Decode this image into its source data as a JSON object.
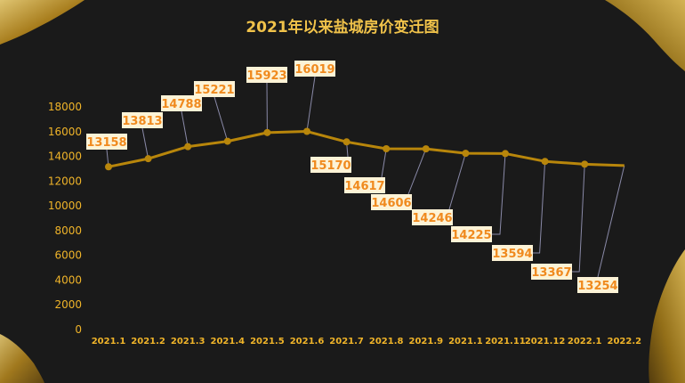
{
  "chart_data": {
    "type": "line",
    "title": "2021年以来盐城房价变迁图",
    "categories": [
      "2021.1",
      "2021.2",
      "2021.3",
      "2021.4",
      "2021.5",
      "2021.6",
      "2021.7",
      "2021.8",
      "2021.9",
      "2021.1",
      "2021.11",
      "2021.12",
      "2022.1",
      "2022.2"
    ],
    "series": [
      {
        "values": [
          13158,
          13813,
          14788,
          15221,
          15923,
          16019,
          15170,
          14617,
          14606,
          14246,
          14225,
          13594,
          13367,
          13254
        ]
      }
    ],
    "ylim": [
      0,
      18000
    ],
    "yticks": [
      0,
      2000,
      4000,
      6000,
      8000,
      10000,
      12000,
      14000,
      16000,
      18000
    ],
    "grid": false,
    "legend": "none"
  },
  "colors": {
    "background": "#1a1a1a",
    "title": "#f0c24a",
    "axis_text": "#f0b429",
    "line": "#b8860b",
    "label_box": "#fdf3d6",
    "label_text": "#f08a1e",
    "leader": "#8a8aa8",
    "brush": "#c9a227"
  }
}
